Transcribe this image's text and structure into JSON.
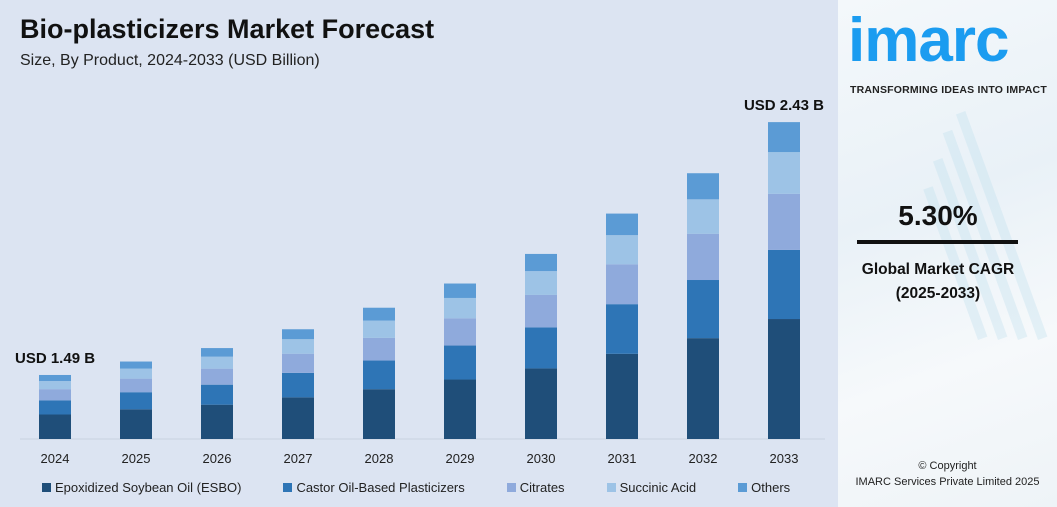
{
  "chart_data": {
    "type": "bar",
    "stacked": true,
    "title": "Bio-plasticizers Market Forecast",
    "subtitle": "Size, By Product, 2024-2033 (USD Billion)",
    "categories": [
      "2024",
      "2025",
      "2026",
      "2027",
      "2028",
      "2029",
      "2030",
      "2031",
      "2032",
      "2033"
    ],
    "series": [
      {
        "name": "Epoxidized Soybean Oil (ESBO)",
        "color": "#1f4e79",
        "values": [
          0.57,
          0.59,
          0.6,
          0.63,
          0.66,
          0.7,
          0.74,
          0.79,
          0.85,
          0.92
        ]
      },
      {
        "name": "Castor Oil-Based Plasticizers",
        "color": "#2e75b6",
        "values": [
          0.33,
          0.34,
          0.35,
          0.37,
          0.38,
          0.4,
          0.43,
          0.46,
          0.49,
          0.53
        ]
      },
      {
        "name": "Citrates",
        "color": "#8faadc",
        "values": [
          0.26,
          0.27,
          0.28,
          0.29,
          0.3,
          0.32,
          0.34,
          0.37,
          0.39,
          0.43
        ]
      },
      {
        "name": "Succinic Acid",
        "color": "#9dc3e6",
        "values": [
          0.19,
          0.2,
          0.21,
          0.22,
          0.23,
          0.24,
          0.25,
          0.27,
          0.29,
          0.32
        ]
      },
      {
        "name": "Others",
        "color": "#5b9bd5",
        "values": [
          0.14,
          0.14,
          0.15,
          0.15,
          0.17,
          0.17,
          0.18,
          0.2,
          0.22,
          0.23
        ]
      }
    ],
    "annotations": [
      {
        "category": "2024",
        "text": "USD 1.49 B"
      },
      {
        "category": "2033",
        "text": "USD 2.43 B"
      }
    ],
    "legend": "bottom",
    "grid": false
  },
  "side": {
    "logo": "imarc",
    "tagline": "TRANSFORMING IDEAS INTO IMPACT",
    "cagr_value": "5.30%",
    "cagr_label": "Global Market CAGR",
    "cagr_period": "(2025-2033)",
    "copyright": "© Copyright",
    "company": "IMARC Services Private Limited 2025"
  }
}
